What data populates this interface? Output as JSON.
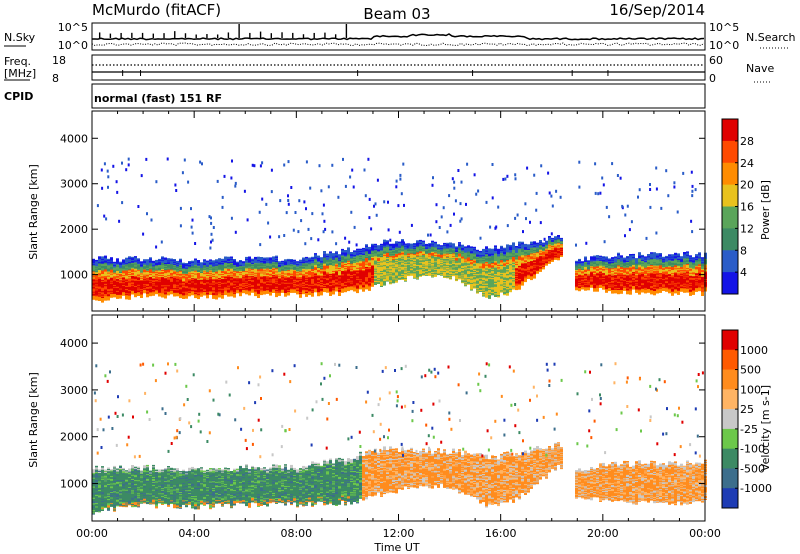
{
  "header": {
    "station": "McMurdo (fitACF)",
    "beam": "Beam 03",
    "date": "16/Sep/2014"
  },
  "noise_panel": {
    "left_label": "N.Sky",
    "left_ticks": [
      "10^5",
      "10^0"
    ],
    "right_label": "N.Search",
    "right_ticks": [
      "10^5",
      "10^0"
    ]
  },
  "freq_panel": {
    "left_label": "Freq.",
    "left_unit": "[MHz]",
    "left_ticks": [
      "18",
      "8"
    ],
    "right_label": "Nave",
    "right_ticks": [
      "60",
      "0"
    ]
  },
  "cpid_panel": {
    "label": "CPID",
    "program": "normal (fast) 151 RF"
  },
  "x_axis": {
    "label": "Time UT",
    "ticks": [
      "00:00",
      "04:00",
      "08:00",
      "12:00",
      "16:00",
      "20:00",
      "00:00"
    ]
  },
  "colors": {
    "power": [
      "#1414e6",
      "#2a5cc8",
      "#3c8a64",
      "#5aa55a",
      "#e8c21e",
      "#ff8c00",
      "#ff4a00",
      "#e00000"
    ],
    "velocity": [
      "#1e3cb4",
      "#3c6e8c",
      "#3c8a64",
      "#6cc84a",
      "#c8c8c8",
      "#ffb464",
      "#ff8c1e",
      "#ff5a00",
      "#e00000"
    ]
  },
  "chart_data": [
    {
      "type": "heatmap",
      "name": "Power",
      "ylabel": "Slant Range [km]",
      "xlabel": "",
      "y_ticks": [
        1000,
        2000,
        3000,
        4000
      ],
      "ylim": [
        200,
        4600
      ],
      "xlim_hours": [
        0,
        24
      ],
      "colorbar": {
        "label": "Power [dB]",
        "ticks": [
          "28",
          "24",
          "20",
          "16",
          "12",
          "8",
          "4"
        ],
        "range": [
          0,
          32
        ]
      },
      "main_band": {
        "time_hours": [
          0,
          2,
          4,
          6,
          8,
          10,
          11.5,
          12.5,
          14,
          15.5,
          16.5,
          18.3,
          18.9,
          20,
          22,
          24
        ],
        "lower_km": [
          400,
          550,
          500,
          550,
          550,
          600,
          800,
          950,
          950,
          500,
          650,
          1400,
          700,
          650,
          600,
          600
        ],
        "upper_km": [
          1350,
          1350,
          1300,
          1350,
          1350,
          1550,
          1750,
          1700,
          1700,
          1550,
          1650,
          1850,
          1300,
          1400,
          1450,
          1450
        ],
        "data_gap_hours": [
          18.4,
          18.9
        ]
      }
    },
    {
      "type": "heatmap",
      "name": "Velocity",
      "ylabel": "Slant Range [km]",
      "xlabel": "Time UT",
      "y_ticks": [
        1000,
        2000,
        3000,
        4000
      ],
      "ylim": [
        200,
        4600
      ],
      "xlim_hours": [
        0,
        24
      ],
      "colorbar": {
        "label": "Velocity [m s-1]",
        "ticks": [
          "1000",
          "500",
          "100",
          "25",
          "-25",
          "-100",
          "-500",
          "-1000"
        ],
        "range": [
          -1000,
          1000
        ]
      },
      "main_band": {
        "time_hours": [
          0,
          2,
          4,
          6,
          8,
          10,
          11.5,
          12.5,
          14,
          15.5,
          16.5,
          18.3,
          18.9,
          20,
          22,
          24
        ],
        "lower_km": [
          400,
          550,
          500,
          550,
          550,
          600,
          800,
          950,
          950,
          500,
          650,
          1400,
          700,
          650,
          600,
          600
        ],
        "upper_km": [
          1350,
          1350,
          1300,
          1350,
          1350,
          1550,
          1750,
          1700,
          1700,
          1550,
          1650,
          1850,
          1300,
          1400,
          1450,
          1450
        ],
        "data_gap_hours": [
          18.4,
          18.9
        ]
      }
    }
  ]
}
